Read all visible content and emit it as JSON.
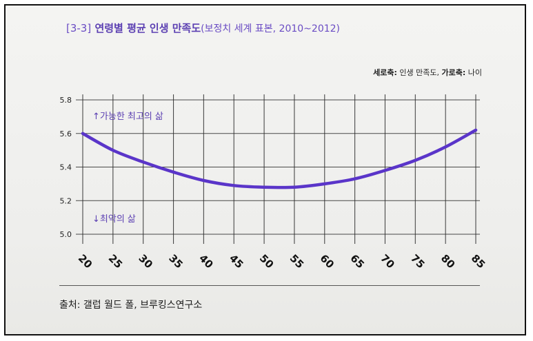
{
  "figure": {
    "number": "[3-3]",
    "title": "연령별 평균 인생 만족도",
    "subtitle": "(보정치 세계 표본, 2010~2012)",
    "axis_note_y_label": "세로축:",
    "axis_note_y": "인생 만족도,",
    "axis_note_x_label": "가로축:",
    "axis_note_x": "나이",
    "annotation_top": "↑가능한 최고의 삶",
    "annotation_bottom": "↓최악의 삶",
    "source": "출처: 갤럽 월드 폴, 브루킹스연구소"
  },
  "colors": {
    "curve": "#5a35c9",
    "title": "#5b3fb2",
    "grid": "#2b2b2b"
  },
  "chart_data": {
    "type": "line",
    "title": "연령별 평균 인생 만족도",
    "xlabel": "나이",
    "ylabel": "인생 만족도",
    "x": [
      20,
      25,
      30,
      35,
      40,
      45,
      50,
      55,
      60,
      65,
      70,
      75,
      80,
      85
    ],
    "y_ticks": [
      "5.8",
      "5.6",
      "5.4",
      "5.2",
      "5.0"
    ],
    "x_ticks": [
      "20",
      "25",
      "30",
      "35",
      "40",
      "45",
      "50",
      "55",
      "60",
      "65",
      "70",
      "75",
      "80",
      "85"
    ],
    "ylim": [
      5.0,
      5.8
    ],
    "xlim": [
      20,
      85
    ],
    "grid": true,
    "series": [
      {
        "values": [
          5.6,
          5.5,
          5.43,
          5.37,
          5.32,
          5.29,
          5.28,
          5.28,
          5.3,
          5.33,
          5.38,
          5.44,
          5.52,
          5.62
        ]
      }
    ]
  }
}
